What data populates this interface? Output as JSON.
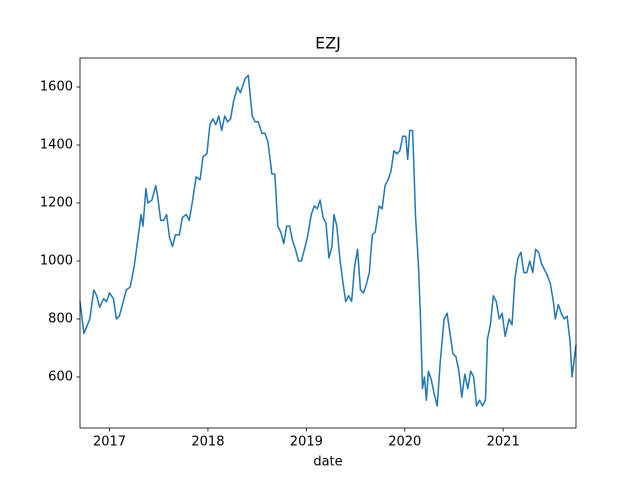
{
  "chart_data": {
    "type": "line",
    "title": "EZJ",
    "x_label": "date",
    "x": [
      2016.7,
      2016.74,
      2016.8,
      2016.84,
      2016.87,
      2016.9,
      2016.94,
      2016.97,
      2017.0,
      2017.04,
      2017.07,
      2017.1,
      2017.14,
      2017.17,
      2017.21,
      2017.25,
      2017.29,
      2017.32,
      2017.34,
      2017.37,
      2017.39,
      2017.43,
      2017.47,
      2017.49,
      2017.52,
      2017.55,
      2017.58,
      2017.61,
      2017.64,
      2017.67,
      2017.71,
      2017.74,
      2017.78,
      2017.81,
      2017.84,
      2017.88,
      2017.92,
      2017.95,
      2017.99,
      2018.02,
      2018.05,
      2018.08,
      2018.11,
      2018.14,
      2018.17,
      2018.2,
      2018.23,
      2018.26,
      2018.3,
      2018.33,
      2018.38,
      2018.41,
      2018.45,
      2018.48,
      2018.51,
      2018.55,
      2018.58,
      2018.61,
      2018.65,
      2018.68,
      2018.71,
      2018.74,
      2018.77,
      2018.8,
      2018.83,
      2018.86,
      2018.89,
      2018.92,
      2018.95,
      2018.98,
      2019.01,
      2019.05,
      2019.08,
      2019.11,
      2019.14,
      2019.17,
      2019.2,
      2019.23,
      2019.26,
      2019.28,
      2019.31,
      2019.34,
      2019.37,
      2019.4,
      2019.43,
      2019.46,
      2019.49,
      2019.52,
      2019.55,
      2019.58,
      2019.61,
      2019.64,
      2019.67,
      2019.7,
      2019.74,
      2019.77,
      2019.8,
      2019.83,
      2019.86,
      2019.89,
      2019.92,
      2019.95,
      2019.98,
      2020.01,
      2020.03,
      2020.05,
      2020.08,
      2020.11,
      2020.14,
      2020.16,
      2020.18,
      2020.2,
      2020.22,
      2020.24,
      2020.27,
      2020.3,
      2020.33,
      2020.36,
      2020.4,
      2020.43,
      2020.46,
      2020.49,
      2020.52,
      2020.55,
      2020.58,
      2020.61,
      2020.64,
      2020.67,
      2020.7,
      2020.73,
      2020.76,
      2020.79,
      2020.82,
      2020.84,
      2020.87,
      2020.9,
      2020.93,
      2020.96,
      2020.99,
      2021.02,
      2021.06,
      2021.09,
      2021.12,
      2021.15,
      2021.18,
      2021.21,
      2021.24,
      2021.27,
      2021.3,
      2021.33,
      2021.36,
      2021.39,
      2021.42,
      2021.45,
      2021.48,
      2021.51,
      2021.53,
      2021.56,
      2021.59,
      2021.62,
      2021.65,
      2021.68,
      2021.7,
      2021.74
    ],
    "series": [
      {
        "color": "#1f77b4",
        "values": [
          860,
          750,
          800,
          900,
          880,
          840,
          870,
          860,
          890,
          870,
          800,
          810,
          860,
          900,
          910,
          980,
          1080,
          1160,
          1120,
          1250,
          1200,
          1210,
          1260,
          1220,
          1140,
          1140,
          1160,
          1080,
          1050,
          1090,
          1090,
          1150,
          1160,
          1140,
          1200,
          1290,
          1280,
          1360,
          1370,
          1470,
          1490,
          1470,
          1500,
          1450,
          1500,
          1480,
          1490,
          1550,
          1600,
          1580,
          1630,
          1640,
          1500,
          1480,
          1480,
          1440,
          1440,
          1410,
          1300,
          1300,
          1120,
          1100,
          1060,
          1120,
          1120,
          1070,
          1040,
          1000,
          1000,
          1040,
          1080,
          1160,
          1190,
          1180,
          1210,
          1150,
          1130,
          1010,
          1050,
          1160,
          1120,
          1010,
          930,
          860,
          880,
          860,
          980,
          1040,
          900,
          890,
          920,
          960,
          1090,
          1100,
          1190,
          1180,
          1260,
          1280,
          1310,
          1380,
          1370,
          1380,
          1430,
          1430,
          1350,
          1450,
          1450,
          1150,
          980,
          800,
          560,
          600,
          520,
          620,
          590,
          540,
          500,
          650,
          800,
          820,
          750,
          680,
          670,
          620,
          530,
          610,
          560,
          620,
          600,
          500,
          520,
          500,
          520,
          730,
          780,
          880,
          860,
          800,
          820,
          740,
          800,
          780,
          940,
          1010,
          1030,
          960,
          960,
          1000,
          960,
          1040,
          1030,
          990,
          970,
          950,
          920,
          860,
          800,
          850,
          820,
          800,
          810,
          720,
          600,
          710
        ]
      }
    ],
    "xlim": [
      2016.7,
      2021.74
    ],
    "xticks": [
      2017,
      2018,
      2019,
      2020,
      2021
    ],
    "ylim": [
      424,
      1700
    ],
    "yticks": [
      600,
      800,
      1000,
      1200,
      1400,
      1600
    ]
  }
}
